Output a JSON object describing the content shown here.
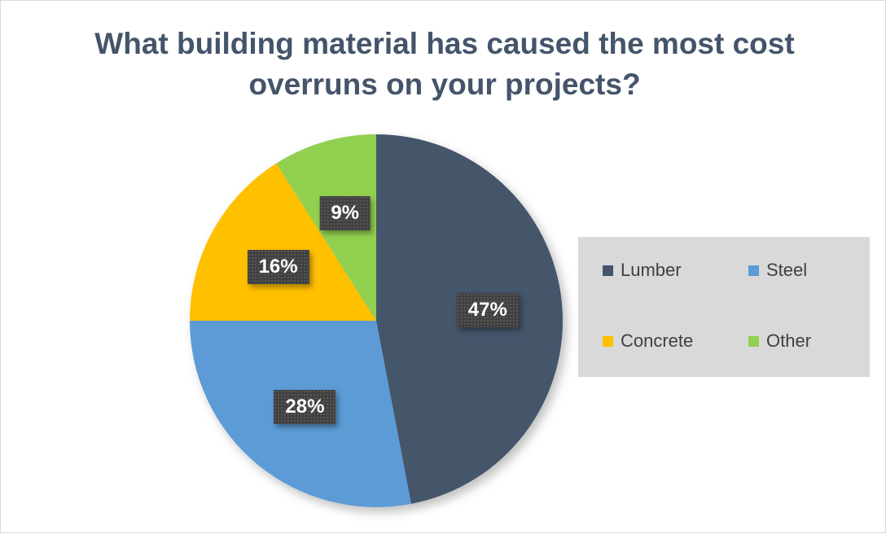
{
  "chart_data": {
    "type": "pie",
    "title": "What building material has caused the most cost overruns on your projects?",
    "categories": [
      "Lumber",
      "Steel",
      "Concrete",
      "Other"
    ],
    "values": [
      47,
      28,
      16,
      9
    ],
    "labels": [
      "47%",
      "28%",
      "16%",
      "9%"
    ],
    "colors": [
      "#44546a",
      "#5b9bd5",
      "#ffc000",
      "#92d050"
    ],
    "start_angle_deg": 0,
    "direction": "clockwise",
    "legend_position": "right"
  },
  "legend": {
    "items": [
      {
        "label": "Lumber",
        "color": "#44546a"
      },
      {
        "label": "Steel",
        "color": "#5b9bd5"
      },
      {
        "label": "Concrete",
        "color": "#ffc000"
      },
      {
        "label": "Other",
        "color": "#92d050"
      }
    ]
  }
}
